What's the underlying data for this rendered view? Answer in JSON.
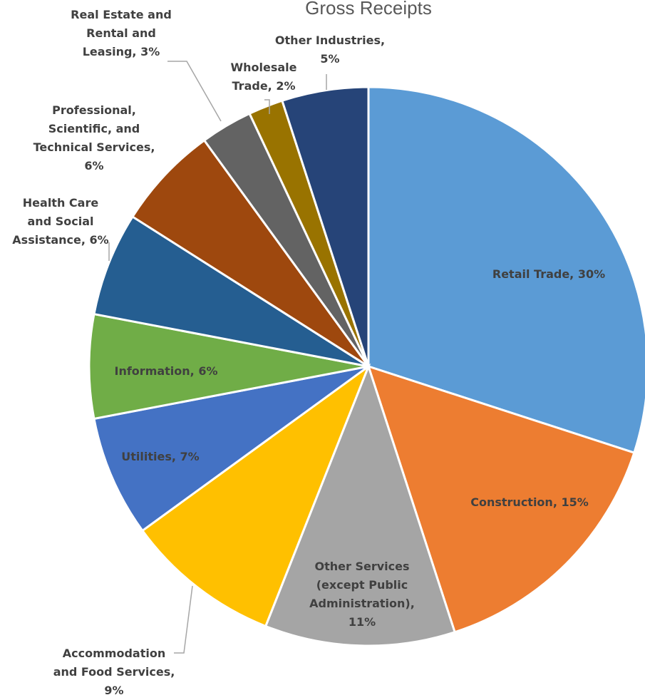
{
  "chart_data": {
    "type": "pie",
    "title": "Gross Receipts",
    "slices": [
      {
        "name": "Retail Trade",
        "percent_label": "30%",
        "value": 30,
        "color": "#5B9BD5",
        "label_lines": [
          "Retail Trade, 30%"
        ]
      },
      {
        "name": "Construction",
        "percent_label": "15%",
        "value": 15,
        "color": "#ED7D31",
        "label_lines": [
          "Construction, 15%"
        ]
      },
      {
        "name": "Other Services (except Public Administration)",
        "percent_label": "11%",
        "value": 11,
        "color": "#A5A5A5",
        "label_lines": [
          "Other Services",
          "(except Public",
          "Administration),",
          "11%"
        ]
      },
      {
        "name": "Accommodation and Food Services",
        "percent_label": "9%",
        "value": 9,
        "color": "#FFC000",
        "label_lines": [
          "Accommodation",
          "and Food Services,",
          "9%"
        ]
      },
      {
        "name": "Utilities",
        "percent_label": "7%",
        "value": 7,
        "color": "#4472C4",
        "label_lines": [
          "Utilities, 7%"
        ]
      },
      {
        "name": "Information",
        "percent_label": "6%",
        "value": 6,
        "color": "#70AD47",
        "label_lines": [
          "Information, 6%"
        ]
      },
      {
        "name": "Health Care and Social Assistance",
        "percent_label": "6%",
        "value": 6,
        "color": "#255E91",
        "label_lines": [
          "Health Care",
          "and Social",
          "Assistance, 6%"
        ]
      },
      {
        "name": "Professional, Scientific, and Technical Services",
        "percent_label": "6%",
        "value": 6,
        "color": "#9E480E",
        "label_lines": [
          "Professional,",
          "Scientific, and",
          "Technical Services,",
          "6%"
        ]
      },
      {
        "name": "Real Estate and Rental and Leasing",
        "percent_label": "3%",
        "value": 3,
        "color": "#636363",
        "label_lines": [
          "Real Estate and",
          "Rental and",
          "Leasing, 3%"
        ]
      },
      {
        "name": "Wholesale Trade",
        "percent_label": "2%",
        "value": 2,
        "color": "#997300",
        "label_lines": [
          "Wholesale",
          "Trade, 2%"
        ]
      },
      {
        "name": "Other Industries",
        "percent_label": "5%",
        "value": 5,
        "color": "#264478",
        "label_lines": [
          "Other Industries,",
          "5%"
        ]
      }
    ],
    "start_angle": "12 o'clock",
    "direction": "clockwise",
    "legend": "none (data labels)"
  }
}
